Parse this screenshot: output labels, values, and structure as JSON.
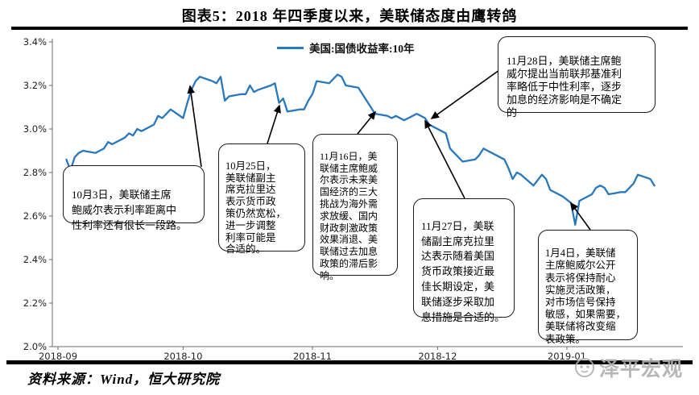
{
  "title": "图表5：2018 年四季度以来，美联储态度由鹰转鸽",
  "source": "资料来源：Wind，恒大研究院",
  "watermark": {
    "brand": "泽平宏观",
    "logo_icon": "panda-circle-logo"
  },
  "chart_data": {
    "type": "line",
    "title": "图表5：2018 年四季度以来，美联储态度由鹰转鸽",
    "legend": "美国:国债收益率:10年",
    "legend_position": "top-center",
    "line_color": "#2878BE",
    "ylabel": "",
    "xlabel": "",
    "ylim": [
      2.0,
      3.4
    ],
    "grid": false,
    "yticks": [
      "3.4%",
      "3.2%",
      "3.0%",
      "2.8%",
      "2.6%",
      "2.4%",
      "2.2%",
      "2.0%"
    ],
    "xticks": [
      "2018-09",
      "2018-10",
      "2018-11",
      "2018-12",
      "2019-01"
    ],
    "series": [
      {
        "name": "美国:国债收益率:10年",
        "points": [
          [
            "2018-09-03",
            2.86
          ],
          [
            "2018-09-04",
            2.81
          ],
          [
            "2018-09-05",
            2.87
          ],
          [
            "2018-09-06",
            2.89
          ],
          [
            "2018-09-07",
            2.9
          ],
          [
            "2018-09-10",
            2.89
          ],
          [
            "2018-09-11",
            2.9
          ],
          [
            "2018-09-12",
            2.91
          ],
          [
            "2018-09-13",
            2.94
          ],
          [
            "2018-09-14",
            2.93
          ],
          [
            "2018-09-17",
            2.96
          ],
          [
            "2018-09-18",
            2.98
          ],
          [
            "2018-09-19",
            2.97
          ],
          [
            "2018-09-20",
            3.0
          ],
          [
            "2018-09-21",
            2.99
          ],
          [
            "2018-09-24",
            3.02
          ],
          [
            "2018-09-25",
            3.06
          ],
          [
            "2018-09-26",
            3.05
          ],
          [
            "2018-09-27",
            3.07
          ],
          [
            "2018-09-28",
            3.09
          ],
          [
            "2018-10-01",
            3.05
          ],
          [
            "2018-10-02",
            3.12
          ],
          [
            "2018-10-03",
            3.18
          ],
          [
            "2018-10-04",
            3.22
          ],
          [
            "2018-10-05",
            3.24
          ],
          [
            "2018-10-08",
            3.22
          ],
          [
            "2018-10-09",
            3.21
          ],
          [
            "2018-10-10",
            3.24
          ],
          [
            "2018-10-11",
            3.13
          ],
          [
            "2018-10-12",
            3.15
          ],
          [
            "2018-10-15",
            3.16
          ],
          [
            "2018-10-16",
            3.16
          ],
          [
            "2018-10-17",
            3.2
          ],
          [
            "2018-10-18",
            3.17
          ],
          [
            "2018-10-19",
            3.18
          ],
          [
            "2018-10-22",
            3.2
          ],
          [
            "2018-10-23",
            3.21
          ],
          [
            "2018-10-24",
            3.12
          ],
          [
            "2018-10-25",
            3.14
          ],
          [
            "2018-10-26",
            3.08
          ],
          [
            "2018-10-29",
            3.09
          ],
          [
            "2018-10-30",
            3.09
          ],
          [
            "2018-10-31",
            3.13
          ],
          [
            "2018-11-01",
            3.16
          ],
          [
            "2018-11-02",
            3.22
          ],
          [
            "2018-11-05",
            3.21
          ],
          [
            "2018-11-06",
            3.23
          ],
          [
            "2018-11-07",
            3.25
          ],
          [
            "2018-11-08",
            3.24
          ],
          [
            "2018-11-09",
            3.2
          ],
          [
            "2018-11-12",
            3.19
          ],
          [
            "2018-11-13",
            3.16
          ],
          [
            "2018-11-14",
            3.13
          ],
          [
            "2018-11-15",
            3.1
          ],
          [
            "2018-11-16",
            3.07
          ],
          [
            "2018-11-19",
            3.06
          ],
          [
            "2018-11-20",
            3.05
          ],
          [
            "2018-11-21",
            3.06
          ],
          [
            "2018-11-23",
            3.04
          ],
          [
            "2018-11-26",
            3.07
          ],
          [
            "2018-11-27",
            3.06
          ],
          [
            "2018-11-28",
            3.05
          ],
          [
            "2018-11-29",
            3.02
          ],
          [
            "2018-11-30",
            3.01
          ],
          [
            "2018-12-03",
            2.98
          ],
          [
            "2018-12-04",
            2.91
          ],
          [
            "2018-12-06",
            2.87
          ],
          [
            "2018-12-07",
            2.85
          ],
          [
            "2018-12-10",
            2.86
          ],
          [
            "2018-12-11",
            2.88
          ],
          [
            "2018-12-12",
            2.91
          ],
          [
            "2018-12-13",
            2.9
          ],
          [
            "2018-12-14",
            2.89
          ],
          [
            "2018-12-17",
            2.86
          ],
          [
            "2018-12-18",
            2.82
          ],
          [
            "2018-12-19",
            2.77
          ],
          [
            "2018-12-20",
            2.8
          ],
          [
            "2018-12-21",
            2.79
          ],
          [
            "2018-12-24",
            2.74
          ],
          [
            "2018-12-26",
            2.79
          ],
          [
            "2018-12-27",
            2.77
          ],
          [
            "2018-12-28",
            2.72
          ],
          [
            "2018-12-31",
            2.69
          ],
          [
            "2019-01-02",
            2.66
          ],
          [
            "2019-01-03",
            2.56
          ],
          [
            "2019-01-04",
            2.67
          ],
          [
            "2019-01-07",
            2.7
          ],
          [
            "2019-01-08",
            2.73
          ],
          [
            "2019-01-09",
            2.74
          ],
          [
            "2019-01-10",
            2.73
          ],
          [
            "2019-01-11",
            2.7
          ],
          [
            "2019-01-14",
            2.71
          ],
          [
            "2019-01-15",
            2.71
          ],
          [
            "2019-01-16",
            2.73
          ],
          [
            "2019-01-17",
            2.75
          ],
          [
            "2019-01-18",
            2.79
          ],
          [
            "2019-01-21",
            2.77
          ],
          [
            "2019-01-22",
            2.74
          ]
        ]
      }
    ],
    "annotations": [
      {
        "id": "oct3",
        "text": "10月3日，美联储主席\n鲍威尔表示利率距离中\n性利率还有很长一段路。"
      },
      {
        "id": "oct25",
        "text": "10月25日，\n美联储副主\n席克拉里达\n表示货币政\n策仍然宽松，\n进一步调整\n利率可能是\n合适的。"
      },
      {
        "id": "nov16",
        "text": "11月16日，美\n联储主席鲍威\n尔表示未来美\n国经济的三大\n挑战为海外需\n求放缓、国内\n财政刺激政策\n效果消退、美\n联储过去加息\n政策的滞后影\n响。"
      },
      {
        "id": "nov28",
        "text": "11月28日，美联储主席鲍\n威尔提出当前联邦基准利\n率略低于中性利率，逐步\n加息的经济影响是不确定\n的"
      },
      {
        "id": "nov27",
        "text": "11月27日，美联\n储副主席克拉里\n达表示随着美国\n货币政策接近最\n佳长期设定，美\n联储逐步采取加\n息措施是合适的。"
      },
      {
        "id": "jan4",
        "text": "1月4日，美联储\n主席鲍威尔公开\n表示将保持耐心\n实施灵活政策，\n对市场信号保持\n敏感，如果需要，\n美联储将改变缩\n表政策。"
      }
    ]
  }
}
